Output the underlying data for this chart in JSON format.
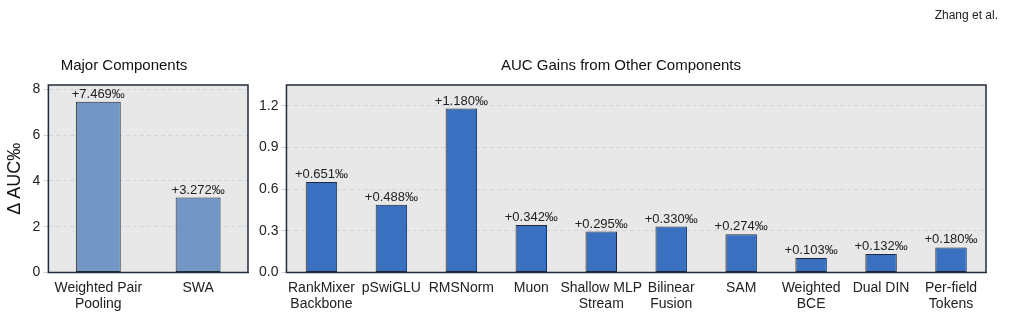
{
  "chart_data": [
    {
      "type": "bar",
      "title": "Major Components",
      "ylabel": "Δ AUC‰",
      "categories": [
        "Weighted Pair Pooling",
        "SWA"
      ],
      "values": [
        7.469,
        3.272
      ],
      "color": "#7397c4",
      "value_labels": [
        "+7.469‰",
        "+3.272‰"
      ],
      "ylim": [
        0,
        8.2
      ],
      "yticks": [
        0,
        2,
        4,
        6,
        8
      ],
      "grid": "y",
      "legend": false
    },
    {
      "type": "bar",
      "title": "AUC Gains from Other Components",
      "categories": [
        "RankMixer Backbone",
        "pSwiGLU",
        "RMSNorm",
        "Muon",
        "Shallow MLP Stream",
        "Bilinear Fusion",
        "SAM",
        "Weighted BCE",
        "Dual DIN",
        "Per-field Tokens"
      ],
      "values": [
        0.651,
        0.488,
        1.18,
        0.342,
        0.295,
        0.33,
        0.274,
        0.103,
        0.132,
        0.18
      ],
      "color": "#3a70c0",
      "value_labels": [
        "+0.651‰",
        "+0.488‰",
        "+1.180‰",
        "+0.342‰",
        "+0.295‰",
        "+0.330‰",
        "+0.274‰",
        "+0.103‰",
        "+0.132‰",
        "+0.180‰"
      ],
      "ylim": [
        0,
        1.35
      ],
      "yticks": [
        {
          "value": 0,
          "label": "0.0"
        },
        {
          "value": 0.3,
          "label": "0.3"
        },
        {
          "value": 0.6,
          "label": "0.6"
        },
        {
          "value": 0.9,
          "label": "0.9"
        },
        {
          "value": 1.2,
          "label": "1.2"
        }
      ],
      "grid": "y",
      "legend": false,
      "annotations": [
        "Zhang et al."
      ]
    }
  ]
}
